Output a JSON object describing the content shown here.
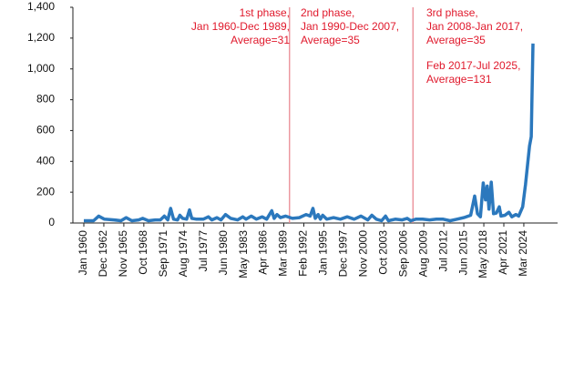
{
  "chart_data": {
    "type": "line",
    "x": [
      "1960-01",
      "1961-06",
      "1962-03",
      "1963-01",
      "1964-06",
      "1965-06",
      "1966-03",
      "1967-01",
      "1968-01",
      "1968-08",
      "1969-06",
      "1970-06",
      "1971-03",
      "1971-10",
      "1972-04",
      "1972-09",
      "1973-02",
      "1973-09",
      "1974-01",
      "1974-06",
      "1975-01",
      "1975-06",
      "1975-10",
      "1976-06",
      "1977-06",
      "1978-03",
      "1978-09",
      "1979-06",
      "1980-01",
      "1980-09",
      "1981-06",
      "1982-06",
      "1983-03",
      "1983-09",
      "1984-06",
      "1985-03",
      "1986-01",
      "1986-09",
      "1987-06",
      "1987-10",
      "1988-03",
      "1988-09",
      "1989-06",
      "1990-06",
      "1991-06",
      "1992-06",
      "1993-01",
      "1993-06",
      "1993-10",
      "1994-03",
      "1994-07",
      "1994-11",
      "1995-06",
      "1996-06",
      "1997-06",
      "1998-06",
      "1999-06",
      "2000-06",
      "2001-06",
      "2002-01",
      "2002-09",
      "2003-06",
      "2004-01",
      "2004-06",
      "2005-06",
      "2006-06",
      "2007-03",
      "2007-09",
      "2008-06",
      "2009-06",
      "2010-06",
      "2011-06",
      "2012-06",
      "2013-06",
      "2014-06",
      "2015-06",
      "2016-06",
      "2017-01",
      "2017-06",
      "2017-11",
      "2018-04",
      "2018-08",
      "2018-11",
      "2019-02",
      "2019-06",
      "2019-10",
      "2020-03",
      "2020-08",
      "2020-11",
      "2021-06",
      "2022-01",
      "2022-06",
      "2023-01",
      "2023-06",
      "2024-01",
      "2024-06",
      "2025-01",
      "2025-04",
      "2025-07"
    ],
    "series": [
      {
        "color": "#2b78bd",
        "values": [
          15,
          15,
          45,
          25,
          20,
          15,
          35,
          15,
          20,
          30,
          15,
          20,
          20,
          45,
          20,
          95,
          25,
          20,
          50,
          30,
          25,
          85,
          30,
          25,
          25,
          40,
          20,
          35,
          20,
          55,
          30,
          20,
          40,
          25,
          45,
          25,
          40,
          25,
          80,
          30,
          55,
          35,
          45,
          30,
          35,
          55,
          45,
          95,
          30,
          55,
          25,
          50,
          25,
          35,
          25,
          40,
          25,
          45,
          20,
          50,
          25,
          15,
          45,
          15,
          25,
          20,
          30,
          15,
          25,
          25,
          20,
          25,
          25,
          15,
          25,
          35,
          50,
          175,
          60,
          40,
          260,
          150,
          240,
          90,
          265,
          60,
          65,
          105,
          45,
          50,
          70,
          40,
          55,
          45,
          105,
          250,
          500,
          560,
          1165
        ]
      }
    ],
    "xticks": [
      {
        "value": "1960-01",
        "label": "Jan 1960"
      },
      {
        "value": "1962-12",
        "label": "Dec 1962"
      },
      {
        "value": "1965-11",
        "label": "Nov 1965"
      },
      {
        "value": "1968-10",
        "label": "Oct 1968"
      },
      {
        "value": "1971-09",
        "label": "Sep 1971"
      },
      {
        "value": "1974-08",
        "label": "Aug 1974"
      },
      {
        "value": "1977-07",
        "label": "Jul 1977"
      },
      {
        "value": "1980-06",
        "label": "Jun 1980"
      },
      {
        "value": "1983-05",
        "label": "May 1983"
      },
      {
        "value": "1986-04",
        "label": "Apr 1986"
      },
      {
        "value": "1989-03",
        "label": "Mar 1989"
      },
      {
        "value": "1992-02",
        "label": "Feb 1992"
      },
      {
        "value": "1995-01",
        "label": "Jan 1995"
      },
      {
        "value": "1997-12",
        "label": "Dec 1997"
      },
      {
        "value": "2000-11",
        "label": "Nov 2000"
      },
      {
        "value": "2003-10",
        "label": "Oct 2003"
      },
      {
        "value": "2006-09",
        "label": "Sep 2006"
      },
      {
        "value": "2009-08",
        "label": "Aug 2009"
      },
      {
        "value": "2012-07",
        "label": "Jul 2012"
      },
      {
        "value": "2015-06",
        "label": "Jun 2015"
      },
      {
        "value": "2018-05",
        "label": "May 2018"
      },
      {
        "value": "2021-04",
        "label": "Apr 2021"
      },
      {
        "value": "2024-03",
        "label": "Mar 2024"
      }
    ],
    "ylim": [
      0,
      1400
    ],
    "yticks": [
      0,
      200,
      400,
      600,
      800,
      {
        "value": 1000,
        "label": "1,000"
      },
      {
        "value": 1200,
        "label": "1,200"
      },
      {
        "value": 1400,
        "label": "1,400"
      }
    ],
    "vlines": [
      "1990-01",
      "2008-01"
    ],
    "vline_color": "#e8808a",
    "annotation_color": "#e0192c",
    "annotations": [
      {
        "lines": [
          "1st phase,",
          "Jan 1960-Dec 1989,",
          "Average=31"
        ]
      },
      {
        "lines": [
          "2nd phase,",
          "Jan 1990-Dec 2007,",
          "Average=35"
        ]
      },
      {
        "lines": [
          "3rd phase,",
          "Jan 2008-Jan 2017,",
          "Average=35"
        ]
      },
      {
        "lines": [
          "Feb 2017-Jul 2025,",
          "Average=131"
        ]
      }
    ]
  }
}
